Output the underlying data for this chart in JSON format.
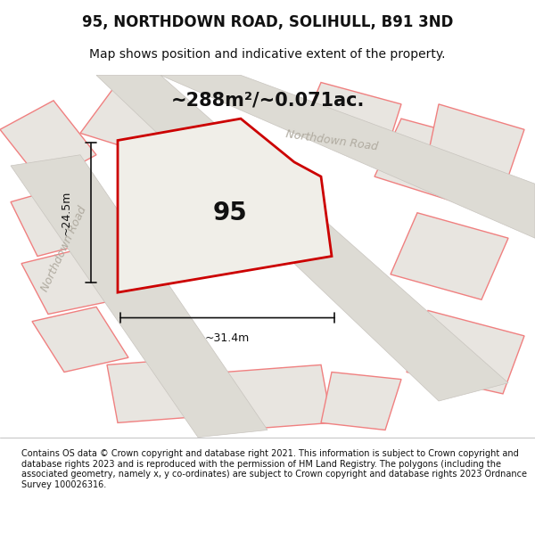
{
  "title": "95, NORTHDOWN ROAD, SOLIHULL, B91 3ND",
  "subtitle": "Map shows position and indicative extent of the property.",
  "area_text": "~288m²/~0.071ac.",
  "number_label": "95",
  "dim_width": "~31.4m",
  "dim_height": "~24.5m",
  "road_label_diagonal": "Northdown Road",
  "road_label_horizontal": "Northdown Road",
  "footer_text": "Contains OS data © Crown copyright and database right 2021. This information is subject to Crown copyright and database rights 2023 and is reproduced with the permission of HM Land Registry. The polygons (including the associated geometry, namely x, y co-ordinates) are subject to Crown copyright and database rights 2023 Ordnance Survey 100026316.",
  "bg_color": "#f5f5f0",
  "map_bg": "#f0efeb",
  "main_plot_color": "#e8e5e0",
  "plot_outline_color": "#cc0000",
  "other_outline_color": "#f08080",
  "road_color": "#e0ddd8",
  "road_border_color": "#c8c4be",
  "dim_line_color": "#111111",
  "text_color": "#111111",
  "road_text_color": "#b0aba0"
}
